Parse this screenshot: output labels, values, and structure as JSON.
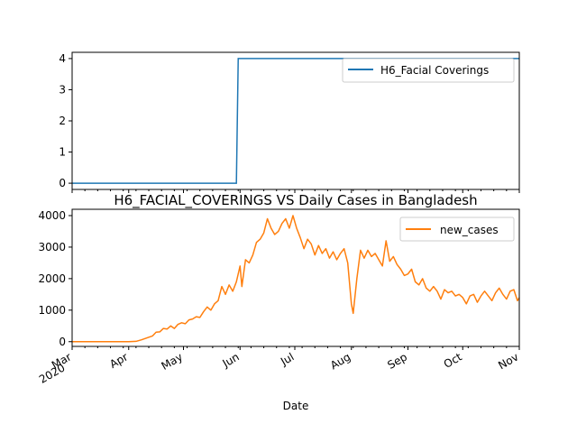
{
  "chart_data": [
    {
      "type": "line",
      "title": "",
      "xlabel": "",
      "ylabel": "",
      "xlim": [
        "2020-03-01",
        "2020-11-01"
      ],
      "ylim": [
        -0.2,
        4.2
      ],
      "yticks": [
        0,
        1,
        2,
        3,
        4
      ],
      "legend": "top-right",
      "series": [
        {
          "name": "H6_Facial Coverings",
          "color": "#1f77b4",
          "points": [
            [
              "2020-03-01",
              0
            ],
            [
              "2020-05-30",
              0
            ],
            [
              "2020-05-31",
              4
            ],
            [
              "2020-11-01",
              4
            ]
          ]
        }
      ]
    },
    {
      "type": "line",
      "title": "H6_FACIAL_COVERINGS VS Daily Cases in Bangladesh",
      "xlabel": "Date",
      "ylabel": "",
      "xlim": [
        "2020-03-01",
        "2020-11-01"
      ],
      "ylim": [
        -150,
        4200
      ],
      "yticks": [
        0,
        1000,
        2000,
        3000,
        4000
      ],
      "legend": "top-right",
      "xtick_labels": [
        {
          "date": "2020-03-01",
          "label": "Mar",
          "sub": "2020"
        },
        {
          "date": "2020-04-01",
          "label": "Apr"
        },
        {
          "date": "2020-05-01",
          "label": "May"
        },
        {
          "date": "2020-06-01",
          "label": "Jun"
        },
        {
          "date": "2020-07-01",
          "label": "Jul"
        },
        {
          "date": "2020-08-01",
          "label": "Aug"
        },
        {
          "date": "2020-09-01",
          "label": "Sep"
        },
        {
          "date": "2020-10-01",
          "label": "Oct"
        },
        {
          "date": "2020-11-01",
          "label": "Nov"
        }
      ],
      "series": [
        {
          "name": "new_cases",
          "color": "#ff7f0e",
          "points": [
            [
              "2020-03-01",
              0
            ],
            [
              "2020-03-15",
              0
            ],
            [
              "2020-04-01",
              0
            ],
            [
              "2020-04-05",
              10
            ],
            [
              "2020-04-08",
              60
            ],
            [
              "2020-04-11",
              120
            ],
            [
              "2020-04-14",
              180
            ],
            [
              "2020-04-16",
              300
            ],
            [
              "2020-04-18",
              310
            ],
            [
              "2020-04-20",
              420
            ],
            [
              "2020-04-22",
              400
            ],
            [
              "2020-04-24",
              500
            ],
            [
              "2020-04-26",
              420
            ],
            [
              "2020-04-28",
              550
            ],
            [
              "2020-04-30",
              600
            ],
            [
              "2020-05-02",
              570
            ],
            [
              "2020-05-04",
              690
            ],
            [
              "2020-05-06",
              720
            ],
            [
              "2020-05-08",
              790
            ],
            [
              "2020-05-10",
              770
            ],
            [
              "2020-05-12",
              950
            ],
            [
              "2020-05-14",
              1100
            ],
            [
              "2020-05-16",
              1000
            ],
            [
              "2020-05-18",
              1200
            ],
            [
              "2020-05-20",
              1300
            ],
            [
              "2020-05-22",
              1750
            ],
            [
              "2020-05-24",
              1500
            ],
            [
              "2020-05-26",
              1800
            ],
            [
              "2020-05-28",
              1600
            ],
            [
              "2020-05-30",
              1900
            ],
            [
              "2020-06-01",
              2400
            ],
            [
              "2020-06-02",
              1750
            ],
            [
              "2020-06-04",
              2600
            ],
            [
              "2020-06-06",
              2500
            ],
            [
              "2020-06-08",
              2750
            ],
            [
              "2020-06-10",
              3150
            ],
            [
              "2020-06-12",
              3250
            ],
            [
              "2020-06-14",
              3450
            ],
            [
              "2020-06-16",
              3900
            ],
            [
              "2020-06-18",
              3600
            ],
            [
              "2020-06-20",
              3400
            ],
            [
              "2020-06-22",
              3500
            ],
            [
              "2020-06-24",
              3750
            ],
            [
              "2020-06-26",
              3900
            ],
            [
              "2020-06-28",
              3600
            ],
            [
              "2020-06-30",
              4000
            ],
            [
              "2020-07-02",
              3600
            ],
            [
              "2020-07-04",
              3300
            ],
            [
              "2020-07-06",
              2950
            ],
            [
              "2020-07-08",
              3250
            ],
            [
              "2020-07-10",
              3100
            ],
            [
              "2020-07-12",
              2750
            ],
            [
              "2020-07-14",
              3050
            ],
            [
              "2020-07-16",
              2800
            ],
            [
              "2020-07-18",
              2950
            ],
            [
              "2020-07-20",
              2650
            ],
            [
              "2020-07-22",
              2850
            ],
            [
              "2020-07-24",
              2600
            ],
            [
              "2020-07-26",
              2800
            ],
            [
              "2020-07-28",
              2950
            ],
            [
              "2020-07-30",
              2500
            ],
            [
              "2020-08-01",
              1200
            ],
            [
              "2020-08-02",
              900
            ],
            [
              "2020-08-04",
              2000
            ],
            [
              "2020-08-06",
              2900
            ],
            [
              "2020-08-08",
              2650
            ],
            [
              "2020-08-10",
              2900
            ],
            [
              "2020-08-12",
              2700
            ],
            [
              "2020-08-14",
              2800
            ],
            [
              "2020-08-16",
              2600
            ],
            [
              "2020-08-18",
              2400
            ],
            [
              "2020-08-20",
              3200
            ],
            [
              "2020-08-22",
              2550
            ],
            [
              "2020-08-24",
              2700
            ],
            [
              "2020-08-26",
              2450
            ],
            [
              "2020-08-28",
              2300
            ],
            [
              "2020-08-30",
              2100
            ],
            [
              "2020-09-01",
              2150
            ],
            [
              "2020-09-03",
              2300
            ],
            [
              "2020-09-05",
              1900
            ],
            [
              "2020-09-07",
              1800
            ],
            [
              "2020-09-09",
              2000
            ],
            [
              "2020-09-11",
              1700
            ],
            [
              "2020-09-13",
              1600
            ],
            [
              "2020-09-15",
              1750
            ],
            [
              "2020-09-17",
              1600
            ],
            [
              "2020-09-19",
              1350
            ],
            [
              "2020-09-21",
              1650
            ],
            [
              "2020-09-23",
              1550
            ],
            [
              "2020-09-25",
              1600
            ],
            [
              "2020-09-27",
              1450
            ],
            [
              "2020-09-29",
              1500
            ],
            [
              "2020-10-01",
              1400
            ],
            [
              "2020-10-03",
              1200
            ],
            [
              "2020-10-05",
              1450
            ],
            [
              "2020-10-07",
              1500
            ],
            [
              "2020-10-09",
              1250
            ],
            [
              "2020-10-11",
              1450
            ],
            [
              "2020-10-13",
              1600
            ],
            [
              "2020-10-15",
              1450
            ],
            [
              "2020-10-17",
              1300
            ],
            [
              "2020-10-19",
              1550
            ],
            [
              "2020-10-21",
              1700
            ],
            [
              "2020-10-23",
              1500
            ],
            [
              "2020-10-25",
              1350
            ],
            [
              "2020-10-27",
              1600
            ],
            [
              "2020-10-29",
              1650
            ],
            [
              "2020-10-31",
              1300
            ],
            [
              "2020-11-01",
              1400
            ]
          ]
        }
      ]
    }
  ]
}
